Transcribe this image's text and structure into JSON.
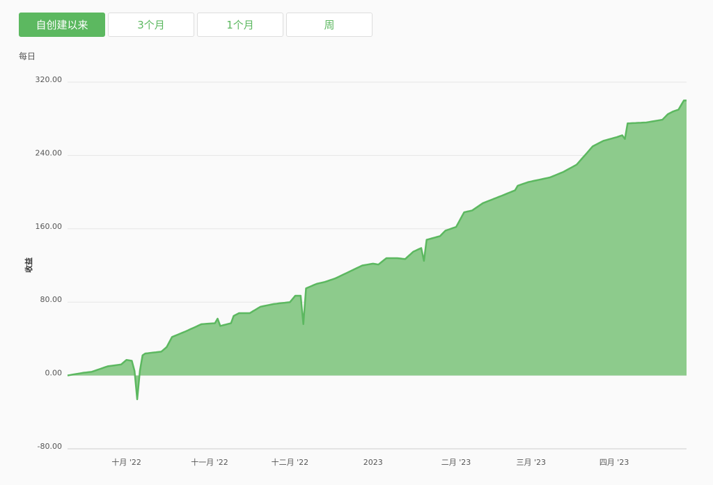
{
  "range_buttons": [
    "自创建以来",
    "3个月",
    "1个月",
    "周"
  ],
  "interval_label": "每日",
  "chart_data": {
    "type": "area",
    "y_label": "收益",
    "color": "#5cb860",
    "fill_color": "#8dcb8c",
    "grid": true,
    "ylim": [
      -80,
      320
    ],
    "yticks": [
      {
        "value": -80,
        "label": "-80.00"
      },
      {
        "value": 0,
        "label": "0.00"
      },
      {
        "value": 80,
        "label": "80.00"
      },
      {
        "value": 160,
        "label": "160.00"
      },
      {
        "value": 240,
        "label": "240.00"
      },
      {
        "value": 320,
        "label": "320.00"
      }
    ],
    "categories": [
      null,
      null,
      null,
      null,
      null,
      null,
      null,
      null,
      null,
      null,
      null,
      null,
      null,
      null,
      null,
      null,
      null,
      null,
      null,
      null,
      null,
      null,
      "十月 '22",
      null,
      null,
      null,
      null,
      null,
      null,
      null,
      null,
      null,
      null,
      null,
      null,
      null,
      null,
      null,
      null,
      null,
      null,
      null,
      null,
      null,
      null,
      null,
      null,
      null,
      null,
      null,
      null,
      null,
      null,
      "十一月 '22",
      null,
      null,
      null,
      null,
      null,
      null,
      null,
      null,
      null,
      null,
      null,
      null,
      null,
      null,
      null,
      null,
      null,
      null,
      null,
      null,
      null,
      null,
      null,
      null,
      null,
      null,
      null,
      null,
      null,
      "十二月 '22",
      null,
      null,
      null,
      null,
      null,
      null,
      null,
      null,
      null,
      null,
      null,
      null,
      null,
      null,
      null,
      null,
      null,
      null,
      null,
      null,
      null,
      null,
      null,
      null,
      null,
      null,
      null,
      null,
      null,
      null,
      "2023",
      null,
      null,
      null,
      null,
      null,
      null,
      null,
      null,
      null,
      null,
      null,
      null,
      null,
      null,
      null,
      null,
      null,
      null,
      null,
      null,
      null,
      null,
      null,
      null,
      null,
      null,
      null,
      null,
      null,
      null,
      "二月 '23",
      null,
      null,
      null,
      null,
      null,
      null,
      null,
      null,
      null,
      null,
      null,
      null,
      null,
      null,
      null,
      null,
      null,
      null,
      null,
      null,
      null,
      null,
      null,
      null,
      null,
      null,
      null,
      "三月 '23",
      null,
      null,
      null,
      null,
      null,
      null,
      null,
      null,
      null,
      null,
      null,
      null,
      null,
      null,
      null,
      null,
      null,
      null,
      null,
      null,
      null,
      null,
      null,
      null,
      null,
      null,
      null,
      null,
      null,
      null,
      "四月 '23",
      null,
      null,
      null,
      null,
      null,
      null,
      null,
      null,
      null,
      null,
      null,
      null,
      null,
      null,
      null,
      null,
      null,
      null,
      null,
      null,
      null,
      null,
      null,
      null,
      null,
      null,
      null
    ],
    "values": [
      0,
      0.5,
      1,
      1.5,
      2,
      2.5,
      3,
      3.3,
      3.7,
      4,
      5,
      6,
      7,
      8,
      9,
      10,
      10.4,
      10.8,
      11.2,
      11.6,
      12,
      14.5,
      17,
      16.5,
      16,
      5,
      -26,
      5,
      22,
      24,
      24.3,
      24.7,
      25,
      25.3,
      25.7,
      26,
      28.5,
      31,
      36.5,
      42,
      43.2,
      44.4,
      45.6,
      46.8,
      48,
      49.3,
      50.7,
      52,
      53.3,
      54.7,
      56,
      56.2,
      56.4,
      56.6,
      56.8,
      57,
      62,
      54,
      54.8,
      55.5,
      56.3,
      57,
      65,
      66.5,
      68,
      68,
      68,
      68,
      68,
      69.8,
      71.5,
      73.3,
      75,
      75.6,
      76.2,
      76.8,
      77.4,
      78,
      78.3,
      78.7,
      79,
      79.3,
      79.7,
      80,
      83.5,
      87,
      87,
      87,
      56,
      95,
      96.3,
      97.5,
      98.8,
      100,
      100.7,
      101.3,
      102,
      103,
      104,
      105,
      106,
      107.4,
      108.8,
      110.2,
      111.6,
      113,
      114.4,
      115.8,
      117.2,
      118.6,
      120,
      120.5,
      121,
      121.5,
      122,
      121.5,
      121,
      123.3,
      125.7,
      128,
      128,
      128,
      128,
      128,
      127.7,
      127.3,
      127,
      129.7,
      132.3,
      135,
      136.3,
      137.7,
      139,
      125,
      148,
      148.8,
      149.6,
      150.4,
      151.2,
      152,
      155,
      158,
      159,
      160,
      161,
      162,
      167.3,
      172.7,
      178,
      178.7,
      179.3,
      180,
      182,
      184,
      186,
      188,
      189.1,
      190.3,
      191.4,
      192.6,
      193.7,
      194.9,
      196,
      197.2,
      198.4,
      199.6,
      200.8,
      202,
      207,
      208,
      209,
      210,
      211,
      211.6,
      212.3,
      212.9,
      213.5,
      214.1,
      214.8,
      215.4,
      216,
      217.2,
      218.4,
      219.6,
      220.8,
      222,
      223.6,
      225.2,
      226.8,
      228.4,
      230,
      233.3,
      236.7,
      240,
      243.3,
      246.7,
      250,
      251.5,
      253,
      254.5,
      256,
      256.8,
      257.6,
      258.4,
      259.2,
      260,
      261,
      262,
      258,
      275,
      275.1,
      275.3,
      275.4,
      275.6,
      275.7,
      275.9,
      276,
      276.5,
      277,
      277.5,
      278,
      278.5,
      279,
      282,
      285,
      286.5,
      288,
      289,
      290,
      295,
      300,
      300
    ]
  }
}
